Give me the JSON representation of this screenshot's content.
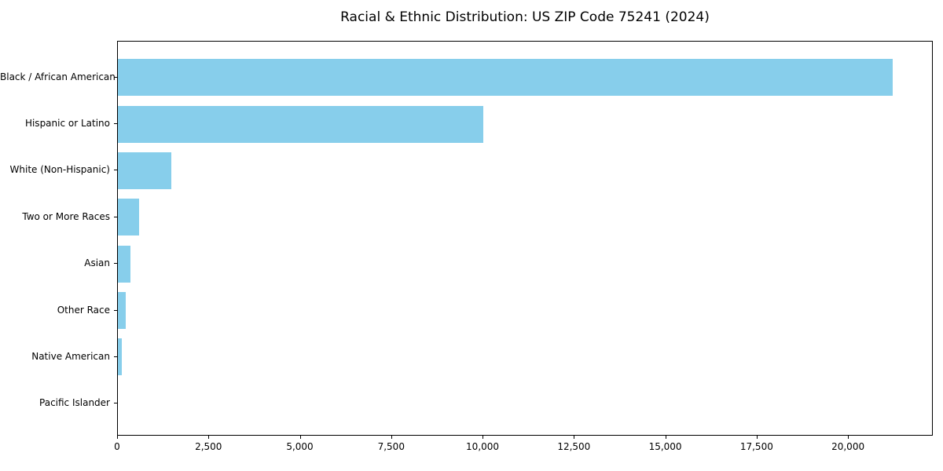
{
  "page": {
    "title": "Racial & Ethnic Distribution: US ZIP Code 75241 (2024)"
  },
  "colors": {
    "bar": "#87CEEB",
    "axis": "#000000",
    "background": "#FFFFFF",
    "text": "#000000"
  },
  "chart_data": {
    "type": "bar",
    "orientation": "horizontal",
    "title": "Racial & Ethnic Distribution: US ZIP Code 75241 (2024)",
    "categories": [
      "Black / African American",
      "Hispanic or Latino",
      "White (Non-Hispanic)",
      "Two or More Races",
      "Asian",
      "Other Race",
      "Native American",
      "Pacific Islander"
    ],
    "values": [
      21200,
      10000,
      1470,
      580,
      345,
      210,
      105,
      0
    ],
    "xlabel": "",
    "ylabel": "",
    "xlim": [
      0,
      22320
    ],
    "x_ticks": [
      0,
      2500,
      5000,
      7500,
      10000,
      12500,
      15000,
      17500,
      20000
    ],
    "x_tick_labels": [
      "0",
      "2,500",
      "5,000",
      "7,500",
      "10,000",
      "12,500",
      "15,000",
      "17,500",
      "20,000"
    ],
    "grid": false,
    "legend": null,
    "bar_color": "#87CEEB"
  }
}
